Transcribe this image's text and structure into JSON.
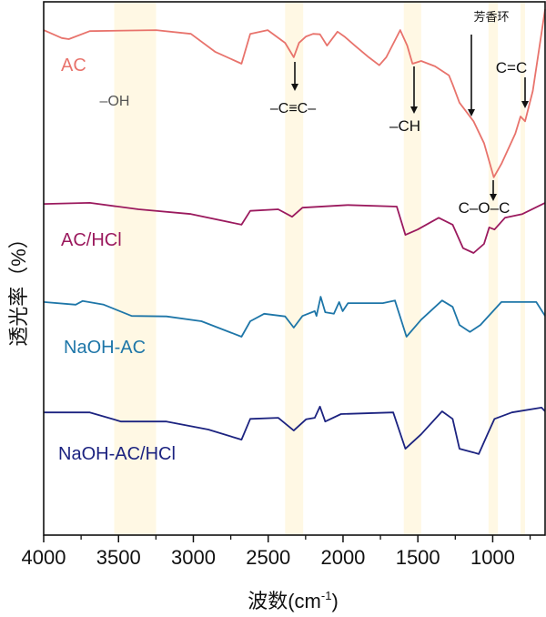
{
  "chart_data": {
    "type": "line",
    "title": "",
    "xlabel": "波数(cm⁻¹)",
    "xlabel_base": "波数(cm",
    "xlabel_sup": "-1",
    "xlabel_close": ")",
    "ylabel": "透光率（%）",
    "xlim": [
      4000,
      650
    ],
    "x_reversed": true,
    "ylim": [
      0,
      100
    ],
    "y_ticks_shown": false,
    "grid": false,
    "legend": "inline labels at left of each curve",
    "x_ticks": [
      4000,
      3500,
      3000,
      2500,
      2000,
      1500,
      1000
    ],
    "x_minor_ticks": [
      3750,
      3250,
      2750,
      2250,
      1750,
      1250,
      750
    ],
    "highlight_bands": [
      [
        3529,
        3249
      ],
      [
        2387,
        2266
      ],
      [
        1594,
        1478
      ],
      [
        1028,
        965
      ],
      [
        814,
        784
      ]
    ],
    "highlight_color": "#fff8e4",
    "series": [
      {
        "name": "AC",
        "color": "#e8736c",
        "x": [
          4000,
          3879,
          3832,
          3692,
          3249,
          3016,
          2853,
          2678,
          2620,
          2503,
          2387,
          2329,
          2294,
          2247,
          2200,
          2154,
          2107,
          2037,
          1991,
          1921,
          1828,
          1758,
          1711,
          1618,
          1571,
          1536,
          1478,
          1385,
          1292,
          1268,
          1222,
          1128,
          1058,
          993,
          942,
          849,
          814,
          784,
          732,
          650
        ],
        "y": [
          94.7,
          93.2,
          93.0,
          94.5,
          94.7,
          94.0,
          90.6,
          88.4,
          94.0,
          94.7,
          92.3,
          89.6,
          92.3,
          93.5,
          94.0,
          93.9,
          91.8,
          94.4,
          93.5,
          91.8,
          89.6,
          88.1,
          89.6,
          94.7,
          91.8,
          88.4,
          88.9,
          87.9,
          86.2,
          84.5,
          81.1,
          77.6,
          73.5,
          67.1,
          69.6,
          75.3,
          78.5,
          77.6,
          83.3,
          98.6
        ]
      },
      {
        "name": "AC/HCl",
        "color": "#9b1a5e",
        "x": [
          4000,
          3692,
          3366,
          3016,
          2678,
          2620,
          2433,
          2340,
          2271,
          1967,
          1641,
          1583,
          1501,
          1361,
          1268,
          1198,
          1128,
          1058,
          1023,
          988,
          918,
          802,
          650
        ],
        "y": [
          62.1,
          62.3,
          61.1,
          60.2,
          58.2,
          60.8,
          61.1,
          59.7,
          61.4,
          61.9,
          61.6,
          56.3,
          57.3,
          59.5,
          58.2,
          53.8,
          52.9,
          54.6,
          57.7,
          57.3,
          59.5,
          60.2,
          62.3
        ]
      },
      {
        "name": "NaOH-AC",
        "color": "#1e76a8",
        "x": [
          4000,
          3786,
          3739,
          3599,
          3412,
          3179,
          2946,
          2678,
          2620,
          2527,
          2387,
          2329,
          2271,
          2189,
          2177,
          2149,
          2119,
          2061,
          2026,
          2002,
          1967,
          1734,
          1653,
          1576,
          1478,
          1338,
          1268,
          1222,
          1152,
          1082,
          942,
          709,
          650
        ],
        "y": [
          43.7,
          43.2,
          43.9,
          43.2,
          41.1,
          41.0,
          40.1,
          37.2,
          40.1,
          41.5,
          41.0,
          38.9,
          41.1,
          42.0,
          41.1,
          44.7,
          41.8,
          41.5,
          43.7,
          42.0,
          43.5,
          43.5,
          44.0,
          37.2,
          40.4,
          44.0,
          42.8,
          39.4,
          38.1,
          39.4,
          43.7,
          43.7,
          41.1
        ]
      },
      {
        "name": "NaOH-AC/HCl",
        "color": "#1c2380",
        "x": [
          4000,
          3692,
          3483,
          3179,
          2900,
          2678,
          2620,
          2433,
          2329,
          2247,
          2189,
          2154,
          2119,
          2014,
          1665,
          1583,
          1478,
          1338,
          1268,
          1222,
          1128,
          1093,
          1035,
          988,
          872,
          674,
          650
        ],
        "y": [
          23.0,
          23.0,
          21.3,
          21.3,
          19.8,
          17.9,
          21.8,
          22.0,
          19.6,
          21.7,
          22.0,
          24.1,
          21.3,
          22.7,
          23.0,
          16.2,
          18.9,
          23.2,
          21.8,
          16.2,
          15.5,
          15.2,
          18.9,
          21.8,
          23.0,
          23.9,
          23.2
        ]
      }
    ],
    "annotations": [
      {
        "text": "–OH",
        "color": "#555555"
      },
      {
        "text": "–C≡C–",
        "color": "#111111"
      },
      {
        "text": "–CH",
        "color": "#111111"
      },
      {
        "text": "芳香环",
        "color": "#111111"
      },
      {
        "text": "C=C",
        "color": "#111111"
      },
      {
        "text": "C–O–C",
        "color": "#111111"
      }
    ]
  }
}
